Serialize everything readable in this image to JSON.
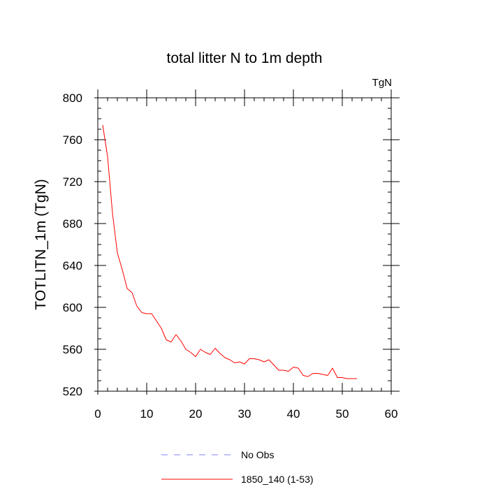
{
  "chart_data": {
    "type": "line",
    "title": "total litter N to 1m depth",
    "units_label": "TgN",
    "ylabel": "TOTLITN_1m  (TgN)",
    "xlabel": "",
    "xlim": [
      0,
      60
    ],
    "ylim": [
      520,
      800
    ],
    "x_ticks": [
      0,
      10,
      20,
      30,
      40,
      50,
      60
    ],
    "y_ticks": [
      520,
      560,
      600,
      640,
      680,
      720,
      760,
      800
    ],
    "grid": false,
    "legend_position": "bottom",
    "series": [
      {
        "name": "No Obs",
        "color": "#8080ff",
        "dash": "dashed",
        "x": [],
        "y": []
      },
      {
        "name": "1850_140 (1-53)",
        "color": "#ff0000",
        "dash": "solid",
        "x": [
          1,
          2,
          3,
          4,
          5,
          6,
          7,
          8,
          9,
          10,
          11,
          12,
          13,
          14,
          15,
          16,
          17,
          18,
          19,
          20,
          21,
          22,
          23,
          24,
          25,
          26,
          27,
          28,
          29,
          30,
          31,
          32,
          33,
          34,
          35,
          36,
          37,
          38,
          39,
          40,
          41,
          42,
          43,
          44,
          45,
          46,
          47,
          48,
          49,
          50,
          51,
          52,
          53
        ],
        "y": [
          774,
          744,
          690,
          652,
          636,
          618,
          614,
          601,
          595,
          594,
          594,
          587,
          580,
          569,
          567,
          574,
          568,
          560,
          557,
          553,
          560,
          557,
          555,
          561,
          556,
          552,
          550,
          547,
          548,
          546,
          551,
          551,
          550,
          548,
          550,
          545,
          540,
          540,
          539,
          543,
          542,
          535,
          534,
          537,
          537,
          536,
          535,
          542,
          533,
          533,
          532,
          532,
          532
        ]
      }
    ]
  }
}
